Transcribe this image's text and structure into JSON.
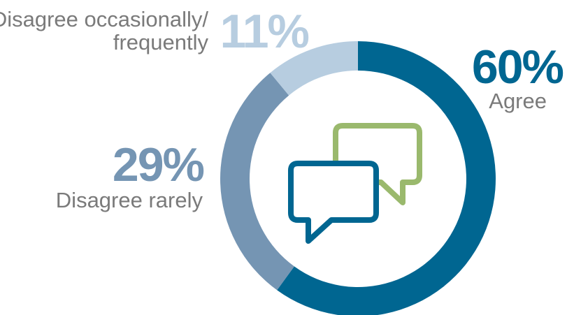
{
  "chart_data": {
    "type": "donut",
    "title": "",
    "categories": [
      "Agree",
      "Disagree rarely",
      "Disagree occasionally/ frequently"
    ],
    "values": [
      60,
      29,
      11
    ],
    "value_labels": [
      "60%",
      "29%",
      "11%"
    ],
    "label_lines": [
      [
        "Agree"
      ],
      [
        "Disagree rarely"
      ],
      [
        "Disagree occasionally/",
        "frequently"
      ]
    ],
    "colors": [
      "#006691",
      "#7595b3",
      "#b7cde0"
    ],
    "center_icon": "speech-bubbles-icon",
    "icon_colors": {
      "front": "#006691",
      "back": "#9ab96d"
    }
  }
}
